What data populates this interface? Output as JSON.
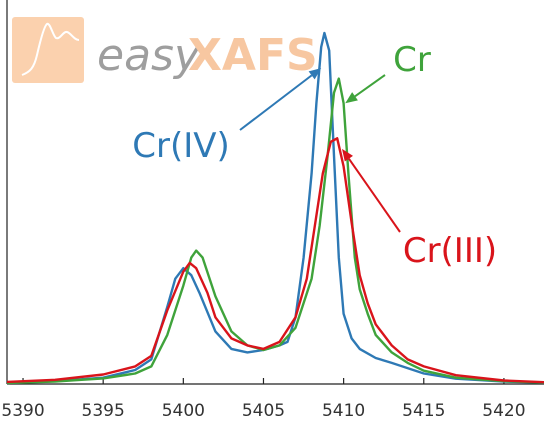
{
  "logo": {
    "word_easy": "easy",
    "word_xafs": "XAFS",
    "color_easy": "#9e9e9e",
    "color_xafs": "#f7c7a1",
    "badge_color": "#fbd1ae"
  },
  "chart_data": {
    "type": "line",
    "xlim": [
      5389,
      5422.5
    ],
    "ylim": [
      0,
      1.0
    ],
    "x_ticks": [
      5390,
      5395,
      5400,
      5405,
      5410,
      5415,
      5420
    ],
    "y_ticks": [],
    "grid": false,
    "legend": "none",
    "series": [
      {
        "name": "Cr(IV)",
        "color": "#2e79b5",
        "points": [
          [
            5389,
            0.003
          ],
          [
            5392,
            0.008
          ],
          [
            5395,
            0.018
          ],
          [
            5397,
            0.04
          ],
          [
            5398,
            0.07
          ],
          [
            5399,
            0.22
          ],
          [
            5399.5,
            0.3
          ],
          [
            5400,
            0.33
          ],
          [
            5400.5,
            0.31
          ],
          [
            5401,
            0.26
          ],
          [
            5402,
            0.15
          ],
          [
            5403,
            0.1
          ],
          [
            5404,
            0.09
          ],
          [
            5405,
            0.097
          ],
          [
            5406,
            0.11
          ],
          [
            5406.5,
            0.12
          ],
          [
            5407,
            0.19
          ],
          [
            5407.5,
            0.36
          ],
          [
            5408,
            0.6
          ],
          [
            5408.3,
            0.8
          ],
          [
            5408.6,
            0.96
          ],
          [
            5408.8,
            1.0
          ],
          [
            5409.1,
            0.95
          ],
          [
            5409.4,
            0.65
          ],
          [
            5409.7,
            0.36
          ],
          [
            5410,
            0.2
          ],
          [
            5410.5,
            0.13
          ],
          [
            5411,
            0.1
          ],
          [
            5412,
            0.074
          ],
          [
            5413,
            0.06
          ],
          [
            5415,
            0.03
          ],
          [
            5417,
            0.015
          ],
          [
            5420,
            0.007
          ],
          [
            5422.5,
            0.004
          ]
        ]
      },
      {
        "name": "Cr",
        "color": "#3fa33b",
        "points": [
          [
            5389,
            0.003
          ],
          [
            5392,
            0.007
          ],
          [
            5395,
            0.016
          ],
          [
            5397,
            0.03
          ],
          [
            5398,
            0.05
          ],
          [
            5399,
            0.14
          ],
          [
            5400,
            0.28
          ],
          [
            5400.5,
            0.36
          ],
          [
            5400.8,
            0.38
          ],
          [
            5401.2,
            0.36
          ],
          [
            5402,
            0.25
          ],
          [
            5403,
            0.15
          ],
          [
            5404,
            0.11
          ],
          [
            5405,
            0.097
          ],
          [
            5406,
            0.11
          ],
          [
            5407,
            0.16
          ],
          [
            5408,
            0.3
          ],
          [
            5408.5,
            0.45
          ],
          [
            5409,
            0.65
          ],
          [
            5409.4,
            0.83
          ],
          [
            5409.7,
            0.87
          ],
          [
            5410,
            0.8
          ],
          [
            5410.3,
            0.6
          ],
          [
            5410.7,
            0.36
          ],
          [
            5411,
            0.27
          ],
          [
            5411.5,
            0.2
          ],
          [
            5412,
            0.14
          ],
          [
            5413,
            0.09
          ],
          [
            5414,
            0.06
          ],
          [
            5415,
            0.038
          ],
          [
            5417,
            0.018
          ],
          [
            5420,
            0.008
          ],
          [
            5422.5,
            0.004
          ]
        ]
      },
      {
        "name": "Cr(III)",
        "color": "#d9141b",
        "points": [
          [
            5389,
            0.006
          ],
          [
            5392,
            0.012
          ],
          [
            5395,
            0.027
          ],
          [
            5397,
            0.05
          ],
          [
            5398,
            0.08
          ],
          [
            5399,
            0.21
          ],
          [
            5400,
            0.32
          ],
          [
            5400.4,
            0.345
          ],
          [
            5400.8,
            0.33
          ],
          [
            5401.5,
            0.26
          ],
          [
            5402,
            0.19
          ],
          [
            5403,
            0.13
          ],
          [
            5404,
            0.11
          ],
          [
            5405,
            0.1
          ],
          [
            5406,
            0.12
          ],
          [
            5407,
            0.19
          ],
          [
            5407.7,
            0.3
          ],
          [
            5408.2,
            0.45
          ],
          [
            5408.7,
            0.6
          ],
          [
            5409.2,
            0.69
          ],
          [
            5409.6,
            0.7
          ],
          [
            5410,
            0.62
          ],
          [
            5410.5,
            0.46
          ],
          [
            5411,
            0.31
          ],
          [
            5411.5,
            0.23
          ],
          [
            5412,
            0.17
          ],
          [
            5413,
            0.11
          ],
          [
            5414,
            0.07
          ],
          [
            5415,
            0.05
          ],
          [
            5417,
            0.025
          ],
          [
            5420,
            0.01
          ],
          [
            5422.5,
            0.005
          ]
        ]
      }
    ],
    "annotations": [
      {
        "text": "Cr(IV)",
        "series": "Cr(IV)",
        "color": "#2e79b5",
        "arrow_to": [
          5408.6,
          0.9
        ]
      },
      {
        "text": "Cr",
        "series": "Cr",
        "color": "#3fa33b",
        "arrow_to": [
          5410.1,
          0.8
        ]
      },
      {
        "text": "Cr(III)",
        "series": "Cr(III)",
        "color": "#d9141b",
        "arrow_to": [
          5409.9,
          0.67
        ]
      }
    ]
  }
}
